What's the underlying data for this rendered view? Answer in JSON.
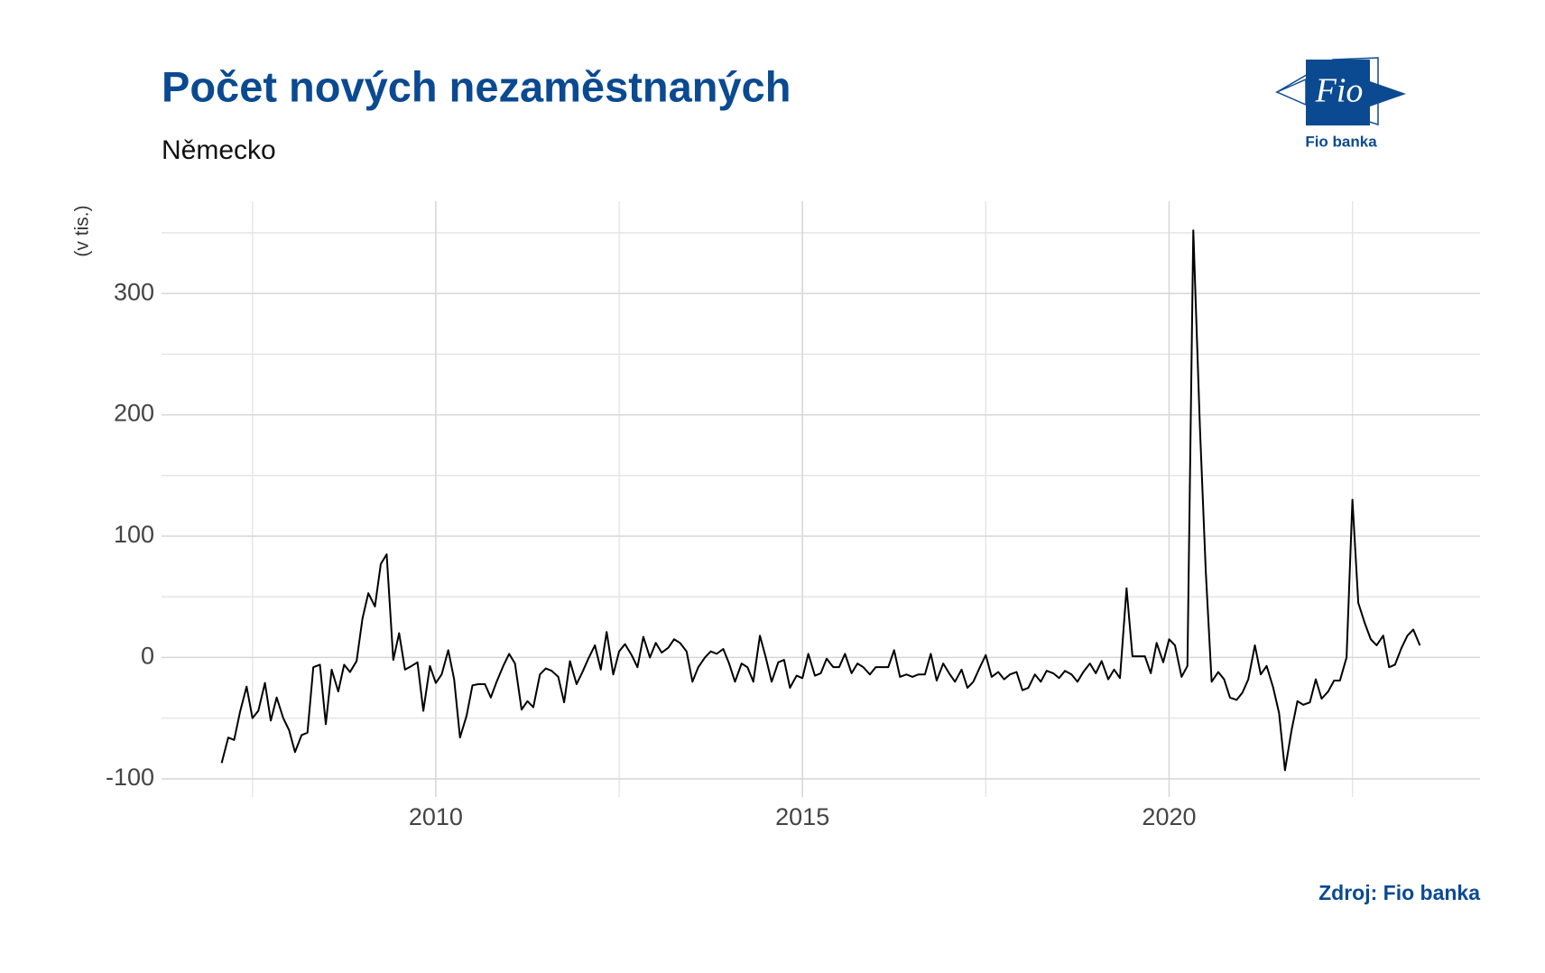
{
  "chart_data": {
    "type": "line",
    "title": "Počet nových nezaměstnaných",
    "subtitle": "Německo",
    "y_label": "(v tis.)",
    "source": "Zdroj: Fio banka",
    "color": "#000000",
    "xlim": [
      2006.26,
      2024.24
    ],
    "ylim": [
      -115,
      376
    ],
    "xticks": [
      2010,
      2015,
      2020
    ],
    "yticks": [
      -100,
      0,
      100,
      200,
      300
    ],
    "x_minor_ticks": [
      2007.5,
      2012.5,
      2017.5,
      2022.5
    ],
    "y_minor_ticks": [
      -50,
      50,
      150,
      250,
      350
    ],
    "grid": true,
    "x": [
      2007.08,
      2007.17,
      2007.25,
      2007.33,
      2007.42,
      2007.5,
      2007.58,
      2007.67,
      2007.75,
      2007.83,
      2007.92,
      2008,
      2008.08,
      2008.17,
      2008.25,
      2008.33,
      2008.42,
      2008.5,
      2008.58,
      2008.67,
      2008.75,
      2008.83,
      2008.92,
      2009,
      2009.08,
      2009.17,
      2009.25,
      2009.33,
      2009.42,
      2009.5,
      2009.58,
      2009.67,
      2009.75,
      2009.83,
      2009.92,
      2010,
      2010.08,
      2010.17,
      2010.25,
      2010.33,
      2010.42,
      2010.5,
      2010.58,
      2010.67,
      2010.75,
      2010.83,
      2010.92,
      2011,
      2011.08,
      2011.17,
      2011.25,
      2011.33,
      2011.42,
      2011.5,
      2011.58,
      2011.67,
      2011.75,
      2011.83,
      2011.92,
      2012,
      2012.08,
      2012.17,
      2012.25,
      2012.33,
      2012.42,
      2012.5,
      2012.58,
      2012.67,
      2012.75,
      2012.83,
      2012.92,
      2013,
      2013.08,
      2013.17,
      2013.25,
      2013.33,
      2013.42,
      2013.5,
      2013.58,
      2013.67,
      2013.75,
      2013.83,
      2013.92,
      2014,
      2014.08,
      2014.17,
      2014.25,
      2014.33,
      2014.42,
      2014.5,
      2014.58,
      2014.67,
      2014.75,
      2014.83,
      2014.92,
      2015,
      2015.08,
      2015.17,
      2015.25,
      2015.33,
      2015.42,
      2015.5,
      2015.58,
      2015.67,
      2015.75,
      2015.83,
      2015.92,
      2016,
      2016.08,
      2016.17,
      2016.25,
      2016.33,
      2016.42,
      2016.5,
      2016.58,
      2016.67,
      2016.75,
      2016.83,
      2016.92,
      2017,
      2017.08,
      2017.17,
      2017.25,
      2017.33,
      2017.42,
      2017.5,
      2017.58,
      2017.67,
      2017.75,
      2017.83,
      2017.92,
      2018,
      2018.08,
      2018.17,
      2018.25,
      2018.33,
      2018.42,
      2018.5,
      2018.58,
      2018.67,
      2018.75,
      2018.83,
      2018.92,
      2019,
      2019.08,
      2019.17,
      2019.25,
      2019.33,
      2019.42,
      2019.5,
      2019.58,
      2019.67,
      2019.75,
      2019.83,
      2019.92,
      2020,
      2020.08,
      2020.17,
      2020.25,
      2020.33,
      2020.42,
      2020.5,
      2020.58,
      2020.67,
      2020.75,
      2020.83,
      2020.92,
      2021,
      2021.08,
      2021.17,
      2021.25,
      2021.33,
      2021.42,
      2021.5,
      2021.58,
      2021.67,
      2021.75,
      2021.83,
      2021.92,
      2022,
      2022.08,
      2022.17,
      2022.25,
      2022.33,
      2022.42,
      2022.5,
      2022.58,
      2022.67,
      2022.75,
      2022.83,
      2022.92,
      2023,
      2023.08,
      2023.17,
      2023.25,
      2023.33,
      2023.42
    ],
    "values": [
      -87,
      -66,
      -68,
      -45,
      -24,
      -50,
      -44,
      -21,
      -52,
      -33,
      -50,
      -60,
      -78,
      -64,
      -62,
      -8,
      -6,
      -55,
      -10,
      -28,
      -6,
      -12,
      -3,
      32,
      53,
      42,
      77,
      85,
      -2,
      20,
      -10,
      -7,
      -4,
      -44,
      -7,
      -21,
      -14,
      6,
      -18,
      -66,
      -48,
      -23,
      -22,
      -22,
      -33,
      -20,
      -7,
      3,
      -5,
      -43,
      -36,
      -41,
      -14,
      -9,
      -11,
      -16,
      -37,
      -3,
      -22,
      -12,
      -1,
      10,
      -10,
      21,
      -14,
      5,
      11,
      2,
      -8,
      17,
      0,
      12,
      4,
      8,
      15,
      12,
      5,
      -20,
      -8,
      0,
      5,
      3,
      7,
      -5,
      -20,
      -5,
      -8,
      -20,
      18,
      0,
      -20,
      -4,
      -2,
      -25,
      -15,
      -17,
      3,
      -15,
      -13,
      -1,
      -8,
      -8,
      3,
      -13,
      -5,
      -8,
      -14,
      -8,
      -8,
      -8,
      6,
      -16,
      -14,
      -16,
      -14,
      -14,
      3,
      -19,
      -5,
      -13,
      -20,
      -10,
      -25,
      -20,
      -8,
      2,
      -16,
      -12,
      -18,
      -14,
      -12,
      -27,
      -25,
      -14,
      -20,
      -11,
      -13,
      -17,
      -11,
      -14,
      -20,
      -12,
      -5,
      -13,
      -3,
      -18,
      -10,
      -17,
      57,
      1,
      1,
      1,
      -13,
      12,
      -4,
      15,
      10,
      -16,
      -7,
      352,
      190,
      71,
      -20,
      -12,
      -18,
      -33,
      -35,
      -29,
      -18,
      10,
      -14,
      -7,
      -25,
      -46,
      -93,
      -60,
      -36,
      -39,
      -37,
      -18,
      -34,
      -28,
      -19,
      -19,
      0,
      130,
      45,
      28,
      15,
      10,
      18,
      -8,
      -6,
      8,
      18,
      23,
      10
    ]
  },
  "logo": {
    "mark": "Fio",
    "name": "Fio banka"
  }
}
